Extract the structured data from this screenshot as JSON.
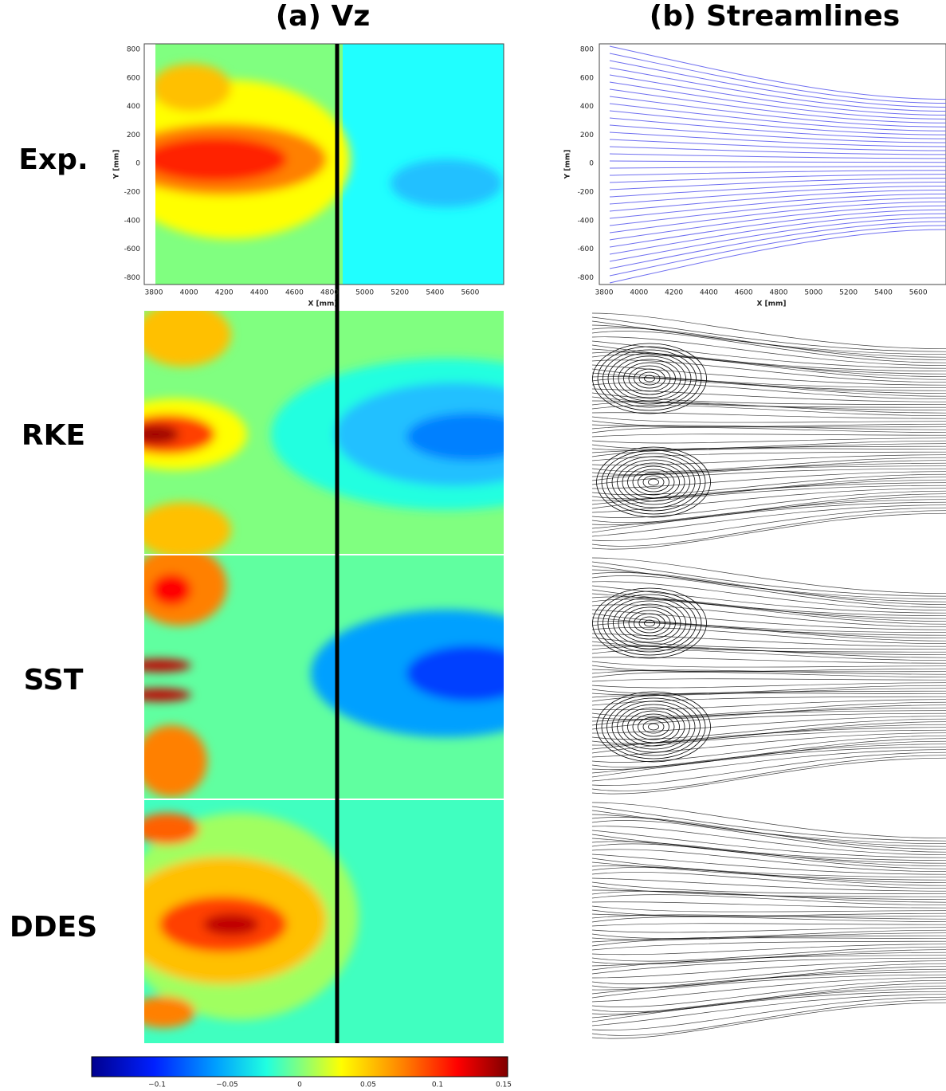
{
  "columns": [
    "(a) Vz",
    "(b) Streamlines"
  ],
  "rows": [
    "Exp.",
    "RKE",
    "SST",
    "DDES"
  ],
  "exp_axes": {
    "xticks": [
      "3800",
      "4000",
      "4200",
      "4400",
      "4600",
      "4800",
      "5000",
      "5200",
      "5400",
      "5600"
    ],
    "yticks": [
      "800",
      "600",
      "400",
      "200",
      "0",
      "-200",
      "-400",
      "-600",
      "-800"
    ],
    "xlabel": "X [mm]",
    "ylabel": "Y [mm]"
  },
  "colorbar": {
    "ticks": [
      "−0.1",
      "−0.05",
      "0",
      "0.05",
      "0.1",
      "0.15"
    ]
  }
}
